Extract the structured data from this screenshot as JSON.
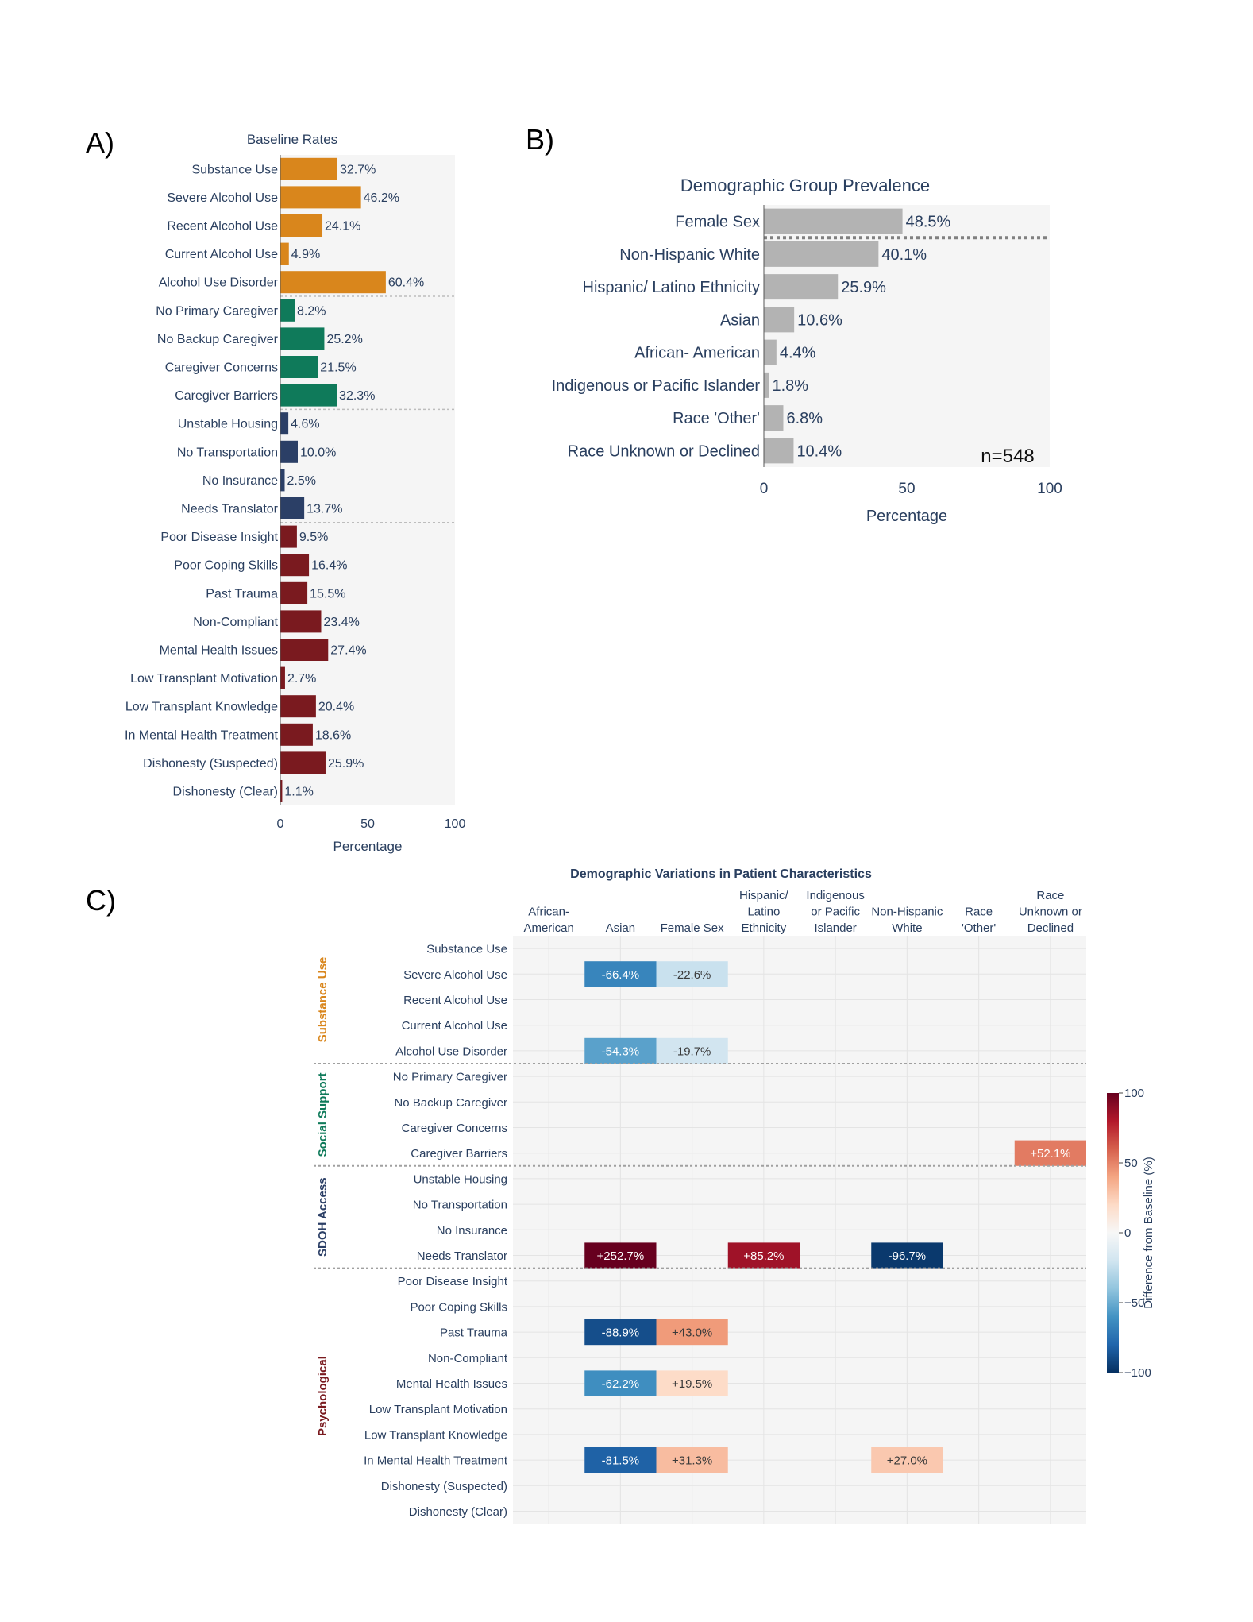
{
  "panels": {
    "a": "A)",
    "b": "B)",
    "c": "C)"
  },
  "chart_data": [
    {
      "id": "baseline",
      "type": "bar",
      "orientation": "horizontal",
      "title": "Baseline Rates",
      "xlabel": "Percentage",
      "xlim": [
        0,
        100
      ],
      "xticks": [
        0,
        50,
        100
      ],
      "categories": [
        "Substance Use",
        "Severe Alcohol Use",
        "Recent Alcohol Use",
        "Current Alcohol Use",
        "Alcohol Use Disorder",
        "No Primary Caregiver",
        "No Backup Caregiver",
        "Caregiver Concerns",
        "Caregiver Barriers",
        "Unstable Housing",
        "No Transportation",
        "No Insurance",
        "Needs Translator",
        "Poor Disease Insight",
        "Poor Coping Skills",
        "Past Trauma",
        "Non-Compliant",
        "Mental Health Issues",
        "Low Transplant Motivation",
        "Low Transplant Knowledge",
        "In Mental Health Treatment",
        "Dishonesty (Suspected)",
        "Dishonesty (Clear)"
      ],
      "values": [
        32.7,
        46.2,
        24.1,
        4.9,
        60.4,
        8.2,
        25.2,
        21.5,
        32.3,
        4.6,
        10.0,
        2.5,
        13.7,
        9.5,
        16.4,
        15.5,
        23.4,
        27.4,
        2.7,
        20.4,
        18.6,
        25.9,
        1.1
      ],
      "labels": [
        "32.7%",
        "46.2%",
        "24.1%",
        "4.9%",
        "60.4%",
        "8.2%",
        "25.2%",
        "21.5%",
        "32.3%",
        "4.6%",
        "10.0%",
        "2.5%",
        "13.7%",
        "9.5%",
        "16.4%",
        "15.5%",
        "23.4%",
        "27.4%",
        "2.7%",
        "20.4%",
        "18.6%",
        "25.9%",
        "1.1%"
      ],
      "groups": [
        0,
        0,
        0,
        0,
        0,
        1,
        1,
        1,
        1,
        2,
        2,
        2,
        2,
        3,
        3,
        3,
        3,
        3,
        3,
        3,
        3,
        3,
        3
      ],
      "group_colors": [
        "#d9861c",
        "#0f7a5a",
        "#2b3f66",
        "#7a1a1f"
      ]
    },
    {
      "id": "prevalence",
      "type": "bar",
      "orientation": "horizontal",
      "title": "Demographic Group Prevalence",
      "xlabel": "Percentage",
      "xlim": [
        0,
        100
      ],
      "xticks": [
        0,
        50,
        100
      ],
      "annotation": "n=548",
      "categories": [
        "Female Sex",
        "Non-Hispanic White",
        "Hispanic/ Latino Ethnicity",
        "Asian",
        "African- American",
        "Indigenous or Pacific Islander",
        "Race 'Other'",
        "Race Unknown or Declined"
      ],
      "values": [
        48.5,
        40.1,
        25.9,
        10.6,
        4.4,
        1.8,
        6.8,
        10.4
      ],
      "labels": [
        "48.5%",
        "40.1%",
        "25.9%",
        "10.6%",
        "4.4%",
        "1.8%",
        "6.8%",
        "10.4%"
      ],
      "bar_color": "#b3b3b3"
    },
    {
      "id": "variations",
      "type": "heatmap",
      "title": "Demographic Variations in Patient Characteristics",
      "columns": [
        [
          "African-",
          "American"
        ],
        [
          "Asian"
        ],
        [
          "Female Sex"
        ],
        [
          "Hispanic/",
          "Latino",
          "Ethnicity"
        ],
        [
          "Indigenous",
          "or Pacific",
          "Islander"
        ],
        [
          "Non-Hispanic",
          "White"
        ],
        [
          "Race",
          "'Other'"
        ],
        [
          "Race",
          "Unknown or",
          "Declined"
        ]
      ],
      "rows": [
        "Substance Use",
        "Severe Alcohol Use",
        "Recent Alcohol Use",
        "Current Alcohol Use",
        "Alcohol Use Disorder",
        "No Primary Caregiver",
        "No Backup Caregiver",
        "Caregiver Concerns",
        "Caregiver Barriers",
        "Unstable Housing",
        "No Transportation",
        "No Insurance",
        "Needs Translator",
        "Poor Disease Insight",
        "Poor Coping Skills",
        "Past Trauma",
        "Non-Compliant",
        "Mental Health Issues",
        "Low Transplant Motivation",
        "Low Transplant Knowledge",
        "In Mental Health Treatment",
        "Dishonesty (Suspected)",
        "Dishonesty (Clear)"
      ],
      "groups": [
        {
          "name": "Substance Use",
          "color": "#d9861c",
          "rows": [
            0,
            4
          ]
        },
        {
          "name": "Social Support",
          "color": "#0f7a5a",
          "rows": [
            5,
            8
          ]
        },
        {
          "name": "SDOH Access",
          "color": "#2b3f66",
          "rows": [
            9,
            12
          ]
        },
        {
          "name": "Psychological",
          "color": "#7a1a1f",
          "rows": [
            13,
            22
          ]
        }
      ],
      "cells": [
        {
          "row": 1,
          "col": 1,
          "value": -66.4,
          "label": "-66.4%"
        },
        {
          "row": 1,
          "col": 2,
          "value": -22.6,
          "label": "-22.6%"
        },
        {
          "row": 4,
          "col": 1,
          "value": -54.3,
          "label": "-54.3%"
        },
        {
          "row": 4,
          "col": 2,
          "value": -19.7,
          "label": "-19.7%"
        },
        {
          "row": 8,
          "col": 7,
          "value": 52.1,
          "label": "+52.1%"
        },
        {
          "row": 12,
          "col": 1,
          "value": 252.7,
          "label": "+252.7%"
        },
        {
          "row": 12,
          "col": 3,
          "value": 85.2,
          "label": "+85.2%"
        },
        {
          "row": 12,
          "col": 5,
          "value": -96.7,
          "label": "-96.7%"
        },
        {
          "row": 15,
          "col": 1,
          "value": -88.9,
          "label": "-88.9%"
        },
        {
          "row": 15,
          "col": 2,
          "value": 43.0,
          "label": "+43.0%"
        },
        {
          "row": 17,
          "col": 1,
          "value": -62.2,
          "label": "-62.2%"
        },
        {
          "row": 17,
          "col": 2,
          "value": 19.5,
          "label": "+19.5%"
        },
        {
          "row": 20,
          "col": 1,
          "value": -81.5,
          "label": "-81.5%"
        },
        {
          "row": 20,
          "col": 2,
          "value": 31.3,
          "label": "+31.3%"
        },
        {
          "row": 20,
          "col": 5,
          "value": 27.0,
          "label": "+27.0%"
        }
      ],
      "colorbar": {
        "title": "Difference from Baseline (%)",
        "range": [
          -100,
          100
        ],
        "ticks": [
          100,
          50,
          0,
          -50,
          -100
        ],
        "tick_labels": [
          "100",
          "50",
          "0",
          "−50",
          "−100"
        ]
      }
    }
  ]
}
